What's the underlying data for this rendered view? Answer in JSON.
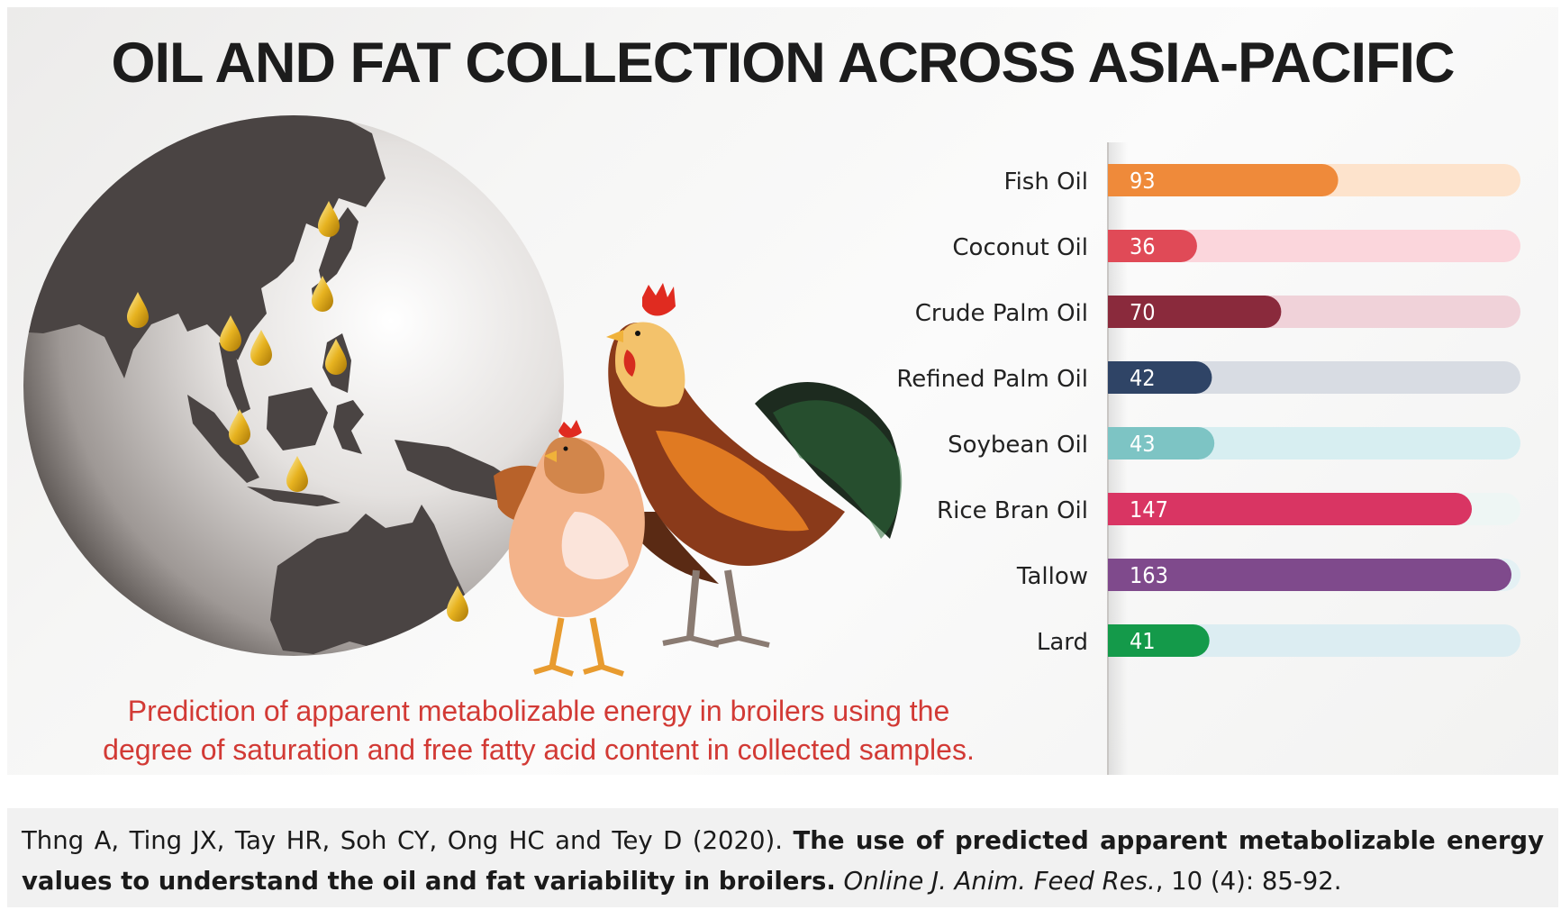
{
  "title": "OIL AND FAT COLLECTION ACROSS ASIA-PACIFIC",
  "subtitle_lines": [
    "Prediction of apparent metabolizable energy in broilers using the",
    "degree of saturation and free fatty acid content in collected samples."
  ],
  "citation": {
    "authors": "Thng A, Ting JX, Tay HR, Soh CY, Ong HC and Tey D (2020). ",
    "article_title": "The use of predicted apparent metabolizable energy values to understand the oil and fat variability in broilers.",
    "journal": "Online J. Anim. Feed Res.",
    "details": ", 10 (4): 85-92."
  },
  "colors": {
    "title": "#1c1c1c",
    "subtitle": "#d23a35",
    "oil_drop": "#e7b320",
    "land": "#4a4443"
  },
  "illustration": {
    "globe": "globe-asia-pacific",
    "drop_icon": "oil-drop-icon",
    "birds": [
      "hen-icon",
      "rooster-icon"
    ]
  },
  "chart_data": {
    "type": "bar",
    "orientation": "horizontal",
    "categories": [
      "Fish Oil",
      "Coconut Oil",
      "Crude Palm Oil",
      "Refined Palm Oil",
      "Soybean Oil",
      "Rice Bran Oil",
      "Tallow",
      "Lard"
    ],
    "values": [
      93,
      36,
      70,
      42,
      43,
      147,
      163,
      41
    ],
    "bar_colors": [
      "#ef8a3a",
      "#e04a57",
      "#8a2a3c",
      "#2f4466",
      "#7dc4c4",
      "#d93563",
      "#7f4a8c",
      "#149a4a"
    ],
    "track_colors": [
      "#fde3cc",
      "#fbd6dc",
      "#f0d2d9",
      "#d8dce3",
      "#d7eef1",
      "#eef6f4",
      "#e4f1f4",
      "#dcedf2"
    ],
    "xlim": [
      0,
      163
    ],
    "grid": false,
    "legend": "none"
  }
}
